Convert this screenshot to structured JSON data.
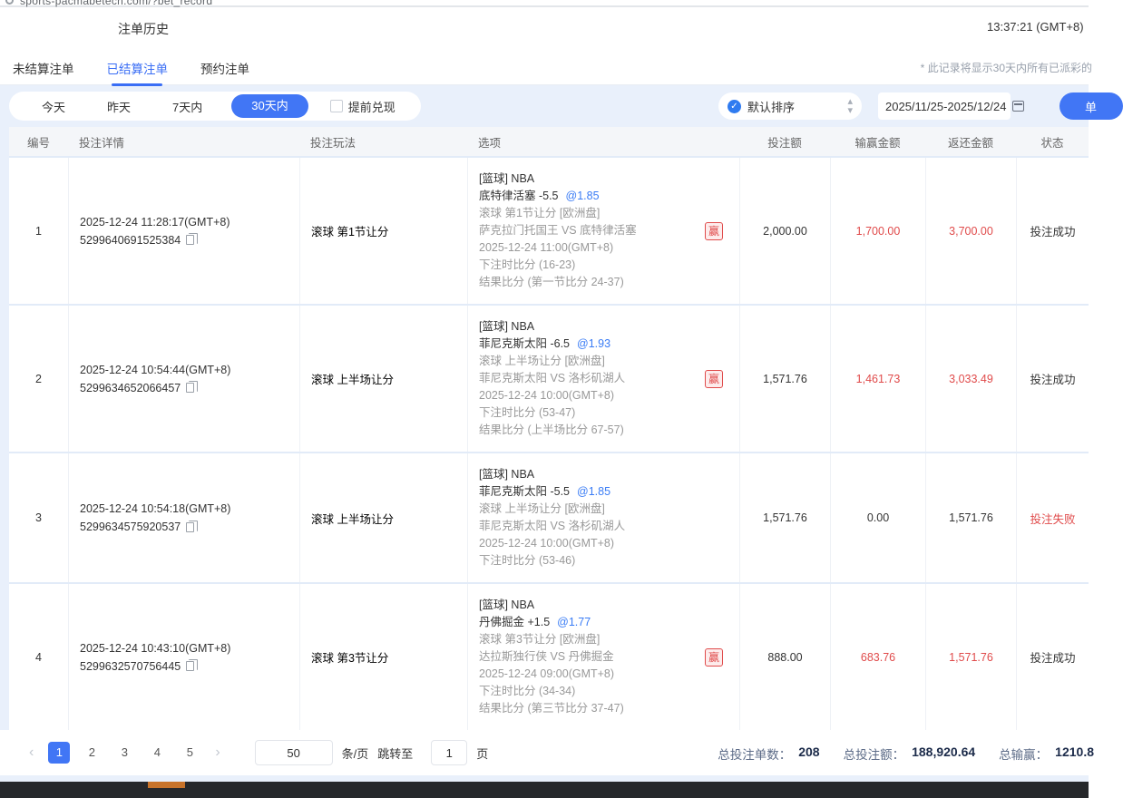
{
  "browser": {
    "url": "sports-pacmabetech.com/?bet_record"
  },
  "header": {
    "title": "注单历史",
    "timestamp": "13:37:21 (GMT+8)"
  },
  "tabs": [
    {
      "label": "未结算注单"
    },
    {
      "label": "已结算注单"
    },
    {
      "label": "预约注单"
    }
  ],
  "note": "* 此记录将显示30天内所有已派彩的",
  "filters": {
    "quick": [
      {
        "label": "今天"
      },
      {
        "label": "昨天"
      },
      {
        "label": "7天内"
      },
      {
        "label": "30天内"
      }
    ],
    "checkbox_label": "提前兑现",
    "sort_label": "默认排序",
    "date_range": "2025/11/25-2025/12/24",
    "action_button": "单"
  },
  "accent_colors": {
    "primary_blue": "#4176f5",
    "win_red": "#e04b4b",
    "odds_blue": "#3a7cf5"
  },
  "table": {
    "headers": [
      "编号",
      "投注详情",
      "投注玩法",
      "选项",
      "投注额",
      "输赢金额",
      "返还金额",
      "状态"
    ],
    "rows": [
      {
        "no": "1",
        "time": "2025-12-24 11:28:17(GMT+8)",
        "order_id": "5299640691525384",
        "play": "滚球  第1节让分",
        "option": {
          "league": "[篮球] NBA",
          "pick": "底特律活塞 -5.5",
          "odds": "@1.85",
          "market": "滚球 第1节让分 [欧洲盘]",
          "match": "萨克拉门托国王 VS 底特律活塞",
          "badge": "赢",
          "match_time": "2025-12-24 11:00(GMT+8)",
          "score_at_bet": "下注时比分 (16-23)",
          "result": "结果比分 (第一节比分 24-37)"
        },
        "amount": "2,000.00",
        "win_loss": "1,700.00",
        "returned": "3,700.00",
        "status": "投注成功"
      },
      {
        "no": "2",
        "time": "2025-12-24 10:54:44(GMT+8)",
        "order_id": "5299634652066457",
        "play": "滚球  上半场让分",
        "option": {
          "league": "[篮球] NBA",
          "pick": "菲尼克斯太阳 -6.5",
          "odds": "@1.93",
          "market": "滚球 上半场让分 [欧洲盘]",
          "match": "菲尼克斯太阳 VS 洛杉矶湖人",
          "badge": "赢",
          "match_time": "2025-12-24 10:00(GMT+8)",
          "score_at_bet": "下注时比分 (53-47)",
          "result": "结果比分 (上半场比分 67-57)"
        },
        "amount": "1,571.76",
        "win_loss": "1,461.73",
        "returned": "3,033.49",
        "status": "投注成功"
      },
      {
        "no": "3",
        "time": "2025-12-24 10:54:18(GMT+8)",
        "order_id": "5299634575920537",
        "play": "滚球  上半场让分",
        "option": {
          "league": "[篮球] NBA",
          "pick": "菲尼克斯太阳 -5.5",
          "odds": "@1.85",
          "market": "滚球 上半场让分 [欧洲盘]",
          "match": "菲尼克斯太阳 VS 洛杉矶湖人",
          "match_time": "2025-12-24 10:00(GMT+8)",
          "score_at_bet": "下注时比分 (53-46)"
        },
        "amount": "1,571.76",
        "win_loss": "0.00",
        "returned": "1,571.76",
        "status": "投注失败"
      },
      {
        "no": "4",
        "time": "2025-12-24 10:43:10(GMT+8)",
        "order_id": "5299632570756445",
        "play": "滚球  第3节让分",
        "option": {
          "league": "[篮球] NBA",
          "pick": "丹佛掘金 +1.5",
          "odds": "@1.77",
          "market": "滚球 第3节让分 [欧洲盘]",
          "match": "达拉斯独行侠 VS 丹佛掘金",
          "badge": "赢",
          "match_time": "2025-12-24 09:00(GMT+8)",
          "score_at_bet": "下注时比分 (34-34)",
          "result": "结果比分 (第三节比分 37-47)"
        },
        "amount": "888.00",
        "win_loss": "683.76",
        "returned": "1,571.76",
        "status": "投注成功"
      }
    ]
  },
  "pagination": {
    "pages": [
      "1",
      "2",
      "3",
      "4",
      "5"
    ],
    "page_size": "50",
    "per_page_label": "条/页",
    "jump_label": "跳转至",
    "jump_value": "1",
    "page_unit": "页"
  },
  "summary": {
    "count_label": "总投注单数：",
    "count_value": "208",
    "amount_label": "总投注额：",
    "amount_value": "188,920.64",
    "winloss_label": "总输赢：",
    "winloss_value": "1210.8"
  }
}
